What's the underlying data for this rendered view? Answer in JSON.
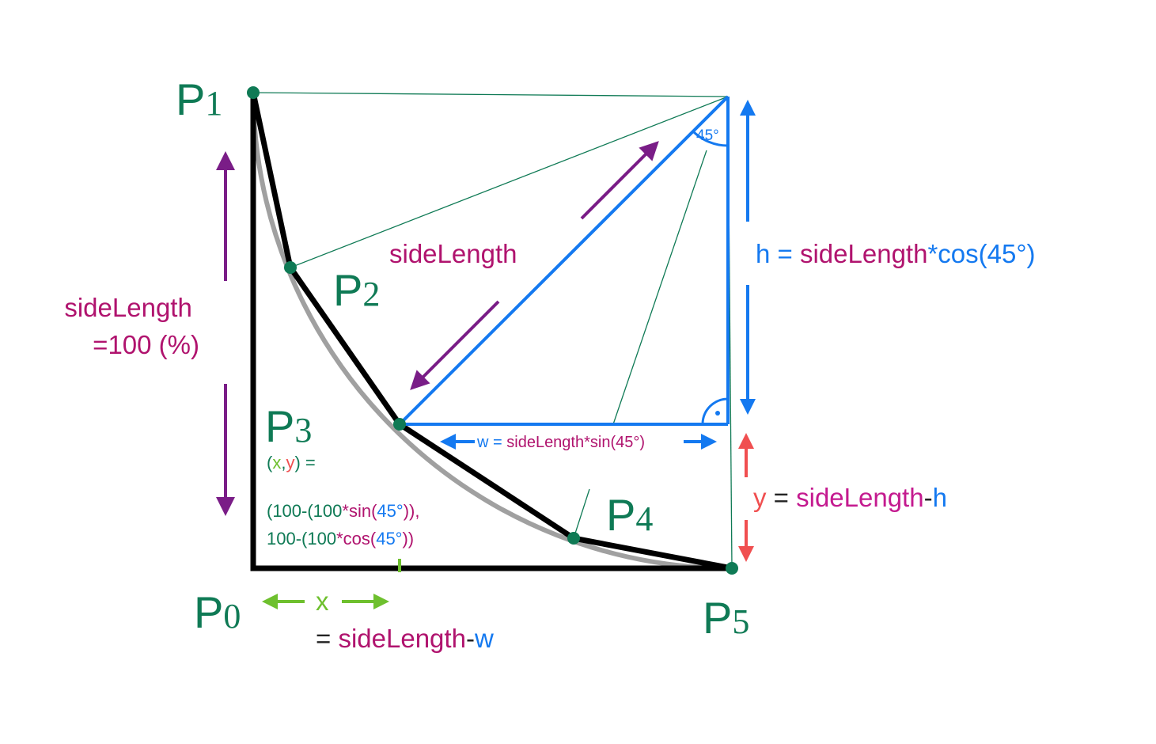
{
  "colors": {
    "green": "#0f7a55",
    "blue": "#1479f0",
    "purple": "#7a1d87",
    "magenta": "#b0136e",
    "pink": "#c41a8f",
    "red": "#f04f50",
    "lime": "#6ec02e",
    "black": "#000000",
    "gray": "#a0a0a0"
  },
  "points": {
    "p0": {
      "letter": "P",
      "index": "0"
    },
    "p1": {
      "letter": "P",
      "index": "1"
    },
    "p2": {
      "letter": "P",
      "index": "2"
    },
    "p3": {
      "letter": "P",
      "index": "3"
    },
    "p4": {
      "letter": "P",
      "index": "4"
    },
    "p5": {
      "letter": "P",
      "index": "5"
    }
  },
  "labels": {
    "side_left_line1": "sideLength",
    "side_left_line2": "=100 (%)",
    "side_diag": "sideLength",
    "angle": "45°",
    "h_prefix": "h = ",
    "h_side": "sideLength",
    "h_suffix": "*cos(45°)",
    "w_prefix": "w = ",
    "w_side": "sideLength",
    "w_suffix": "*sin(45°)",
    "y_var": "y",
    "y_eq": " = ",
    "y_side": "sideLength",
    "y_minus": "-",
    "y_h": "h",
    "x_var": "x",
    "x_eq": "= ",
    "x_side": "sideLength",
    "x_minus": "-",
    "x_w": "w",
    "xy_open": "(",
    "xy_x": "x",
    "xy_comma": ",",
    "xy_y": "y",
    "xy_close": ") =",
    "formula1_a": "(100-(100",
    "formula1_b": "*sin(",
    "formula1_c": "45°",
    "formula1_d": ")),",
    "formula2_a": "100-(100",
    "formula2_b": "*cos(",
    "formula2_c": "45°",
    "formula2_d": "))"
  }
}
